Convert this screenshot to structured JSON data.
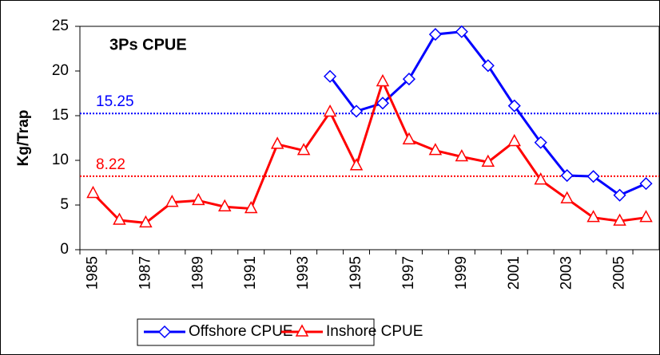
{
  "chart_data": {
    "type": "line",
    "title": "3Ps CPUE",
    "y_label": "Kg/Trap",
    "categories": [
      "1985",
      null,
      "1987",
      null,
      "1989",
      null,
      "1991",
      null,
      "1993",
      null,
      "1995",
      null,
      "1997",
      null,
      "1999",
      null,
      "2001",
      null,
      "2003",
      null,
      "2005",
      null
    ],
    "series": [
      {
        "name": "Offshore CPUE",
        "color": "#0000ff",
        "marker": "diamond",
        "values": [
          null,
          null,
          null,
          null,
          null,
          null,
          null,
          null,
          null,
          19.4,
          15.5,
          16.4,
          19.1,
          24.1,
          24.4,
          20.6,
          16.1,
          12.0,
          8.3,
          8.2,
          6.1,
          7.4
        ]
      },
      {
        "name": "Inshore CPUE",
        "color": "#ff0000",
        "marker": "triangle",
        "values": [
          6.3,
          3.3,
          3.0,
          5.3,
          5.5,
          4.8,
          4.6,
          11.8,
          11.1,
          15.4,
          9.4,
          18.8,
          12.3,
          11.1,
          10.4,
          9.8,
          12.1,
          7.8,
          5.7,
          3.6,
          3.2,
          3.6
        ]
      }
    ],
    "reference_lines": [
      {
        "value": 15.25,
        "color": "#0000ff"
      },
      {
        "value": 8.22,
        "color": "#ff0000"
      }
    ],
    "ylim": [
      0,
      25
    ],
    "yticks": [
      0,
      5,
      10,
      15,
      20,
      25
    ],
    "legend": "bottom"
  }
}
